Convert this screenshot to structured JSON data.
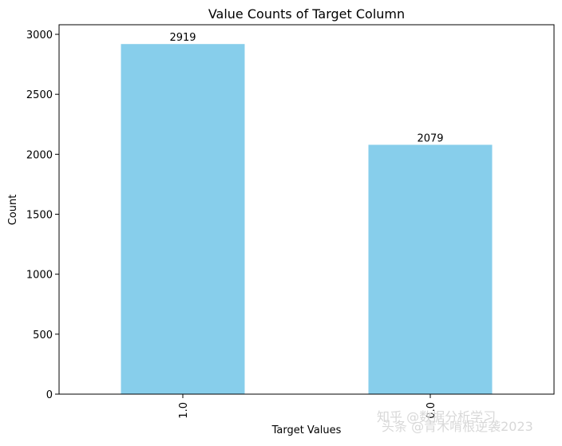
{
  "chart_data": {
    "type": "bar",
    "title": "Value Counts of Target Column",
    "xlabel": "Target Values",
    "ylabel": "Count",
    "categories": [
      "1.0",
      "0.0"
    ],
    "values": [
      2919,
      2079
    ],
    "data_labels": [
      "2919",
      "2079"
    ],
    "ylim": [
      0,
      3080
    ],
    "yticks": [
      0,
      500,
      1000,
      1500,
      2000,
      2500,
      3000
    ],
    "grid": false,
    "bar_color": "#87ceeb"
  },
  "watermark": {
    "line1": "知乎 @数据分析学习",
    "line2": "头条 @青木啃根逆袭2023"
  }
}
